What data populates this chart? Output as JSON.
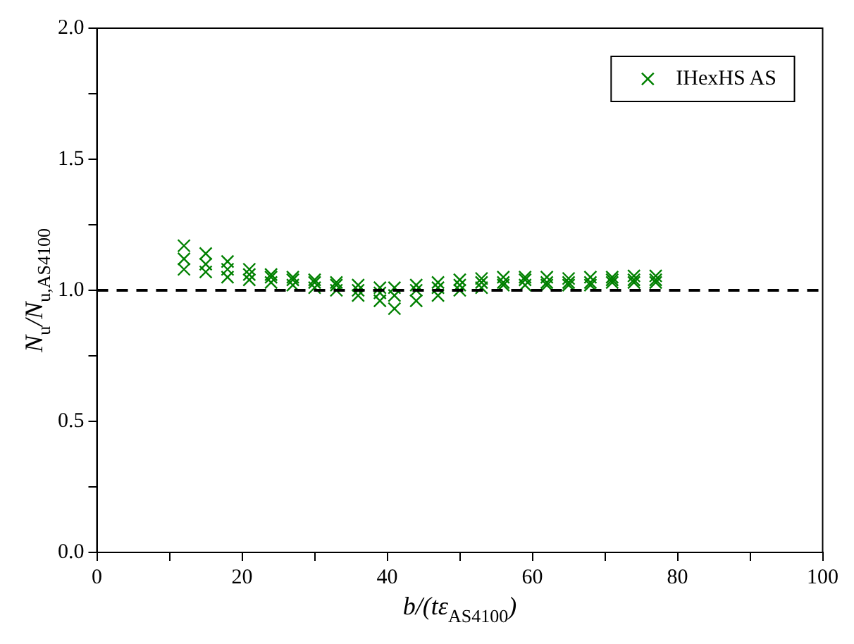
{
  "chart_data": {
    "type": "scatter",
    "xlabel": "b/(tε$_{AS4100}$)",
    "ylabel": "N$_{u}$/N$_{u,AS4100}$",
    "xlim": [
      0,
      100
    ],
    "ylim": [
      0,
      2
    ],
    "xticks": [
      0,
      {
        "value": 10,
        "label": null
      },
      20,
      {
        "value": 30,
        "label": null
      },
      40,
      {
        "value": 50,
        "label": null
      },
      60,
      {
        "value": 70,
        "label": null
      },
      80,
      {
        "value": 90,
        "label": null
      },
      100
    ],
    "yticks": [
      {
        "value": 0,
        "label": "0.0"
      },
      {
        "value": 0.25,
        "label": null
      },
      {
        "value": 0.5,
        "label": "0.5"
      },
      {
        "value": 0.75,
        "label": null
      },
      {
        "value": 1,
        "label": "1.0"
      },
      {
        "value": 1.25,
        "label": null
      },
      {
        "value": 1.5,
        "label": "1.5"
      },
      {
        "value": 1.75,
        "label": null
      },
      {
        "value": 2,
        "label": "2.0"
      }
    ],
    "grid": false,
    "legend": "top right",
    "marker": "cross",
    "ref_lines": [
      {
        "axis": "y",
        "value": 1,
        "color": "#000000",
        "line_style": "dashed"
      }
    ],
    "series": [
      {
        "name": "IHexHS AS",
        "color": "#008000",
        "x": [
          12,
          15,
          18,
          21,
          24,
          27,
          30,
          33,
          36,
          39,
          41,
          44,
          47,
          50,
          53,
          56,
          59,
          62,
          65,
          68,
          71,
          74,
          77,
          12,
          15,
          18,
          21,
          24,
          27,
          30,
          33,
          36,
          39,
          41,
          44,
          47,
          50,
          53,
          56,
          59,
          62,
          65,
          68,
          71,
          74,
          77,
          12,
          15,
          18,
          21,
          24,
          27,
          30,
          33,
          36,
          39,
          41,
          44,
          47,
          50,
          53,
          56,
          59,
          62,
          65,
          68,
          71,
          74,
          77
        ],
        "values": [
          1.17,
          1.14,
          1.11,
          1.08,
          1.06,
          1.05,
          1.04,
          1.03,
          1.02,
          1.01,
          1.01,
          1.02,
          1.03,
          1.04,
          1.045,
          1.05,
          1.05,
          1.05,
          1.045,
          1.05,
          1.05,
          1.055,
          1.055,
          1.12,
          1.1,
          1.08,
          1.06,
          1.05,
          1.04,
          1.03,
          1.02,
          1.0,
          0.99,
          0.98,
          1.0,
          1.01,
          1.02,
          1.03,
          1.03,
          1.04,
          1.03,
          1.03,
          1.03,
          1.04,
          1.04,
          1.04,
          1.08,
          1.07,
          1.05,
          1.04,
          1.03,
          1.02,
          1.01,
          1.0,
          0.98,
          0.96,
          0.93,
          0.96,
          0.98,
          1.0,
          1.01,
          1.02,
          1.02,
          1.02,
          1.02,
          1.02,
          1.03,
          1.03,
          1.03
        ]
      }
    ]
  }
}
